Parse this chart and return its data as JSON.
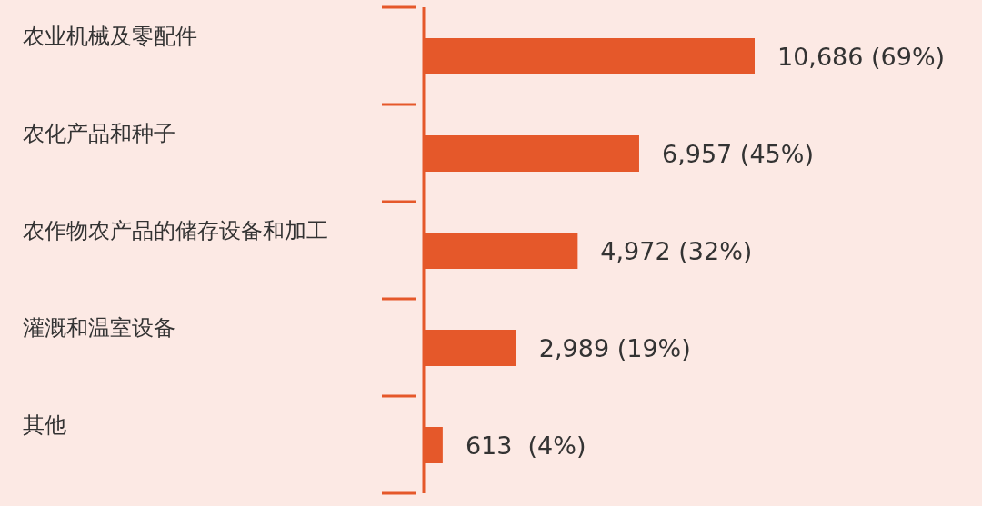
{
  "chart_data": {
    "type": "bar",
    "orientation": "horizontal",
    "categories": [
      "农业机械及零配件",
      "农化产品和种子",
      "农作物农产品的储存设备和加工",
      "灌溉和温室设备",
      "其他"
    ],
    "values": [
      10686,
      6957,
      4972,
      2989,
      613
    ],
    "value_labels": [
      "10,686 (69%)",
      "6,957 (45%)",
      "4,972 (32%)",
      "2,989 (19%)",
      "613  (4%)"
    ],
    "color": "#e5582a",
    "grid": false,
    "legend": false
  }
}
